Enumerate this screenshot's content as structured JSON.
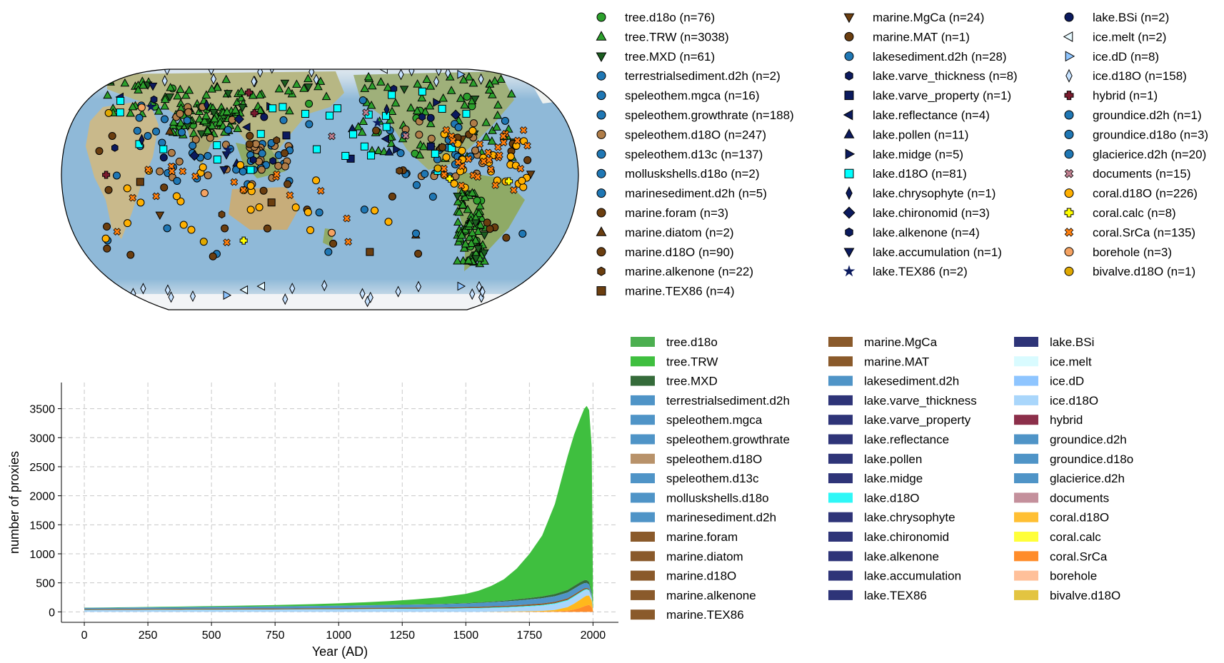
{
  "map_legend_entries": [
    {
      "label": "tree.d18o (n=76)",
      "marker": "circle",
      "color": "#2ca02c"
    },
    {
      "label": "tree.TRW (n=3038)",
      "marker": "triangle-up",
      "color": "#2ca02c"
    },
    {
      "label": "tree.MXD (n=61)",
      "marker": "triangle-down",
      "color": "#1b5e20"
    },
    {
      "label": "terrestrialsediment.d2h (n=2)",
      "marker": "circle",
      "color": "#1f77b4"
    },
    {
      "label": "speleothem.mgca (n=16)",
      "marker": "circle",
      "color": "#1f77b4"
    },
    {
      "label": "speleothem.growthrate (n=188)",
      "marker": "circle",
      "color": "#1f77b4"
    },
    {
      "label": "speleothem.d18O (n=247)",
      "marker": "circle",
      "color": "#b07d48"
    },
    {
      "label": "speleothem.d13c (n=137)",
      "marker": "circle",
      "color": "#1f77b4"
    },
    {
      "label": "molluskshells.d18o (n=2)",
      "marker": "circle",
      "color": "#1f77b4"
    },
    {
      "label": "marinesediment.d2h (n=5)",
      "marker": "circle",
      "color": "#1f77b4"
    },
    {
      "label": "marine.foram (n=3)",
      "marker": "circle",
      "color": "#6b3e0f"
    },
    {
      "label": "marine.diatom (n=2)",
      "marker": "triangle-up",
      "color": "#6b3e0f"
    },
    {
      "label": "marine.d18O (n=90)",
      "marker": "circle",
      "color": "#6b3e0f"
    },
    {
      "label": "marine.alkenone (n=22)",
      "marker": "hexagon",
      "color": "#6b3e0f"
    },
    {
      "label": "marine.TEX86 (n=4)",
      "marker": "square",
      "color": "#6b3e0f"
    },
    {
      "label": "marine.MgCa (n=24)",
      "marker": "triangle-down",
      "color": "#6b3e0f"
    },
    {
      "label": "marine.MAT (n=1)",
      "marker": "circle",
      "color": "#6b3e0f"
    },
    {
      "label": "lakesediment.d2h (n=28)",
      "marker": "circle",
      "color": "#1f77b4"
    },
    {
      "label": "lake.varve_thickness (n=8)",
      "marker": "hexagon",
      "color": "#0b1a5e"
    },
    {
      "label": "lake.varve_property (n=1)",
      "marker": "square",
      "color": "#0b1a5e"
    },
    {
      "label": "lake.reflectance (n=4)",
      "marker": "triangle-left",
      "color": "#0b1a5e"
    },
    {
      "label": "lake.pollen (n=11)",
      "marker": "triangle-up",
      "color": "#0b1a5e"
    },
    {
      "label": "lake.midge (n=5)",
      "marker": "triangle-right",
      "color": "#0b1a5e"
    },
    {
      "label": "lake.d18O (n=81)",
      "marker": "square",
      "color": "#00ffff"
    },
    {
      "label": "lake.chrysophyte (n=1)",
      "marker": "thin-diamond",
      "color": "#0b1a5e"
    },
    {
      "label": "lake.chironomid (n=3)",
      "marker": "diamond",
      "color": "#0b1a5e"
    },
    {
      "label": "lake.alkenone (n=4)",
      "marker": "hexagon",
      "color": "#0b1a5e"
    },
    {
      "label": "lake.accumulation (n=1)",
      "marker": "triangle-down",
      "color": "#0b1a5e"
    },
    {
      "label": "lake.TEX86 (n=2)",
      "marker": "star",
      "color": "#0b1a5e"
    },
    {
      "label": "lake.BSi (n=2)",
      "marker": "circle",
      "color": "#0b1a5e"
    },
    {
      "label": "ice.melt (n=2)",
      "marker": "triangle-left",
      "color": "#e6f9ff"
    },
    {
      "label": "ice.dD (n=8)",
      "marker": "triangle-right",
      "color": "#8ec5ff"
    },
    {
      "label": "ice.d18O (n=158)",
      "marker": "thin-diamond",
      "color": "#c6e2ff"
    },
    {
      "label": "hybrid (n=1)",
      "marker": "plus",
      "color": "#7a1b2e"
    },
    {
      "label": "groundice.d2h (n=1)",
      "marker": "circle",
      "color": "#1f77b4"
    },
    {
      "label": "groundice.d18o (n=3)",
      "marker": "circle",
      "color": "#1f77b4"
    },
    {
      "label": "glacierice.d2h (n=20)",
      "marker": "circle",
      "color": "#1f77b4"
    },
    {
      "label": "documents (n=15)",
      "marker": "x",
      "color": "#c08090"
    },
    {
      "label": "coral.d18O (n=226)",
      "marker": "circle",
      "color": "#ffb000"
    },
    {
      "label": "coral.calc (n=8)",
      "marker": "plus",
      "color": "#ffff00"
    },
    {
      "label": "coral.SrCa (n=135)",
      "marker": "x",
      "color": "#ff7f0e"
    },
    {
      "label": "borehole (n=3)",
      "marker": "circle",
      "color": "#f4a261"
    },
    {
      "label": "bivalve.d18O (n=1)",
      "marker": "circle",
      "color": "#e0a800"
    }
  ],
  "chart_data": [
    {
      "type": "scatter",
      "title": "",
      "description_kind": "map",
      "projection": "Robinson (Pacific-centred)",
      "series_counts": [
        {
          "name": "tree.TRW",
          "n": 3038
        },
        {
          "name": "speleothem.d18O",
          "n": 247
        },
        {
          "name": "coral.d18O",
          "n": 226
        },
        {
          "name": "speleothem.growthrate",
          "n": 188
        },
        {
          "name": "ice.d18O",
          "n": 158
        },
        {
          "name": "speleothem.d13c",
          "n": 137
        },
        {
          "name": "coral.SrCa",
          "n": 135
        },
        {
          "name": "marine.d18O",
          "n": 90
        },
        {
          "name": "lake.d18O",
          "n": 81
        },
        {
          "name": "tree.d18o",
          "n": 76
        },
        {
          "name": "tree.MXD",
          "n": 61
        }
      ]
    },
    {
      "type": "area",
      "title": "",
      "xlabel": "Year (AD)",
      "ylabel": "number of proxies",
      "xlim": [
        -90,
        2100
      ],
      "ylim": [
        -180,
        3950
      ],
      "xticks": [
        0,
        250,
        500,
        750,
        1000,
        1250,
        1500,
        1750,
        2000
      ],
      "yticks": [
        0,
        500,
        1000,
        1500,
        2000,
        2500,
        3000,
        3500
      ],
      "grid": true,
      "stacked": true,
      "x": [
        0,
        100,
        200,
        300,
        400,
        500,
        600,
        700,
        800,
        900,
        1000,
        1100,
        1200,
        1300,
        1400,
        1500,
        1550,
        1600,
        1650,
        1700,
        1750,
        1800,
        1850,
        1900,
        1925,
        1950,
        1965,
        1975,
        1985,
        1995,
        2000
      ],
      "series": [
        {
          "name": "coral.SrCa",
          "color": "#ff8c2a",
          "values": [
            0,
            0,
            0,
            0,
            0,
            0,
            0,
            0,
            0,
            0,
            0,
            0,
            0,
            0,
            0,
            0,
            0,
            0,
            1,
            2,
            3,
            4,
            8,
            20,
            40,
            70,
            95,
            110,
            120,
            80,
            10
          ]
        },
        {
          "name": "coral.d18O",
          "color": "#ffb81c",
          "values": [
            0,
            0,
            0,
            0,
            0,
            0,
            0,
            0,
            0,
            0,
            0,
            0,
            0,
            0,
            0,
            0,
            0,
            2,
            3,
            5,
            8,
            12,
            25,
            60,
            100,
            140,
            160,
            170,
            160,
            110,
            15
          ]
        },
        {
          "name": "ice.d18O",
          "color": "#a9d6fb",
          "values": [
            30,
            31,
            32,
            33,
            34,
            35,
            36,
            37,
            38,
            40,
            42,
            44,
            46,
            48,
            50,
            55,
            58,
            62,
            66,
            72,
            80,
            90,
            100,
            110,
            115,
            115,
            110,
            100,
            85,
            50,
            10
          ]
        },
        {
          "name": "lake.d18O",
          "color": "#2ff7f7",
          "values": [
            3,
            3,
            3,
            3,
            3,
            4,
            4,
            4,
            4,
            5,
            5,
            5,
            6,
            6,
            6,
            7,
            8,
            9,
            10,
            11,
            12,
            13,
            14,
            15,
            15,
            15,
            14,
            13,
            12,
            8,
            2
          ]
        },
        {
          "name": "marine",
          "color": "#8a5a2b",
          "values": [
            15,
            15,
            15,
            16,
            16,
            16,
            17,
            17,
            17,
            18,
            18,
            19,
            19,
            20,
            20,
            21,
            22,
            22,
            23,
            24,
            25,
            26,
            27,
            28,
            28,
            27,
            25,
            22,
            18,
            10,
            2
          ]
        },
        {
          "name": "speleothem",
          "color": "#4f94c7",
          "values": [
            20,
            22,
            24,
            26,
            28,
            30,
            32,
            34,
            36,
            38,
            40,
            43,
            46,
            50,
            55,
            60,
            65,
            70,
            75,
            80,
            85,
            90,
            95,
            100,
            100,
            95,
            90,
            85,
            75,
            45,
            8
          ]
        },
        {
          "name": "tree.MXD",
          "color": "#356b3a",
          "values": [
            0,
            0,
            0,
            0,
            0,
            0,
            0,
            0,
            1,
            1,
            2,
            3,
            4,
            5,
            6,
            8,
            10,
            12,
            15,
            20,
            25,
            30,
            38,
            45,
            48,
            50,
            50,
            48,
            44,
            30,
            5
          ]
        },
        {
          "name": "tree.TRW",
          "color": "#3fbf3f",
          "values": [
            5,
            6,
            8,
            10,
            12,
            15,
            18,
            22,
            26,
            32,
            40,
            50,
            65,
            85,
            115,
            160,
            200,
            270,
            370,
            530,
            760,
            1050,
            1550,
            2300,
            2600,
            2820,
            2950,
            3000,
            2960,
            2500,
            180
          ]
        }
      ]
    }
  ],
  "area_legend_entries": [
    {
      "label": "tree.d18o",
      "color": "#4caf50"
    },
    {
      "label": "tree.TRW",
      "color": "#3fbf3f"
    },
    {
      "label": "tree.MXD",
      "color": "#356b3a"
    },
    {
      "label": "terrestrialsediment.d2h",
      "color": "#4f94c7"
    },
    {
      "label": "speleothem.mgca",
      "color": "#4f94c7"
    },
    {
      "label": "speleothem.growthrate",
      "color": "#4f94c7"
    },
    {
      "label": "speleothem.d18O",
      "color": "#b8926a"
    },
    {
      "label": "speleothem.d13c",
      "color": "#4f94c7"
    },
    {
      "label": "molluskshells.d18o",
      "color": "#4f94c7"
    },
    {
      "label": "marinesediment.d2h",
      "color": "#4f94c7"
    },
    {
      "label": "marine.foram",
      "color": "#8a5a2b"
    },
    {
      "label": "marine.diatom",
      "color": "#8a5a2b"
    },
    {
      "label": "marine.d18O",
      "color": "#8a5a2b"
    },
    {
      "label": "marine.alkenone",
      "color": "#8a5a2b"
    },
    {
      "label": "marine.TEX86",
      "color": "#8a5a2b"
    },
    {
      "label": "marine.MgCa",
      "color": "#8a5a2b"
    },
    {
      "label": "marine.MAT",
      "color": "#8a5a2b"
    },
    {
      "label": "lakesediment.d2h",
      "color": "#4f94c7"
    },
    {
      "label": "lake.varve_thickness",
      "color": "#2e3478"
    },
    {
      "label": "lake.varve_property",
      "color": "#2e3478"
    },
    {
      "label": "lake.reflectance",
      "color": "#2e3478"
    },
    {
      "label": "lake.pollen",
      "color": "#2e3478"
    },
    {
      "label": "lake.midge",
      "color": "#2e3478"
    },
    {
      "label": "lake.d18O",
      "color": "#2ff7f7"
    },
    {
      "label": "lake.chrysophyte",
      "color": "#2e3478"
    },
    {
      "label": "lake.chironomid",
      "color": "#2e3478"
    },
    {
      "label": "lake.alkenone",
      "color": "#2e3478"
    },
    {
      "label": "lake.accumulation",
      "color": "#2e3478"
    },
    {
      "label": "lake.TEX86",
      "color": "#2e3478"
    },
    {
      "label": "lake.BSi",
      "color": "#2e3478"
    },
    {
      "label": "ice.melt",
      "color": "#d9fbff"
    },
    {
      "label": "ice.dD",
      "color": "#8ec5ff"
    },
    {
      "label": "ice.d18O",
      "color": "#a9d6fb"
    },
    {
      "label": "hybrid",
      "color": "#8c2f4a"
    },
    {
      "label": "groundice.d2h",
      "color": "#4f94c7"
    },
    {
      "label": "groundice.d18o",
      "color": "#4f94c7"
    },
    {
      "label": "glacierice.d2h",
      "color": "#4f94c7"
    },
    {
      "label": "documents",
      "color": "#c4909c"
    },
    {
      "label": "coral.d18O",
      "color": "#ffbf33"
    },
    {
      "label": "coral.calc",
      "color": "#ffff3a"
    },
    {
      "label": "coral.SrCa",
      "color": "#ff8c2a"
    },
    {
      "label": "borehole",
      "color": "#ffc09a"
    },
    {
      "label": "bivalve.d18O",
      "color": "#e3c441"
    }
  ]
}
